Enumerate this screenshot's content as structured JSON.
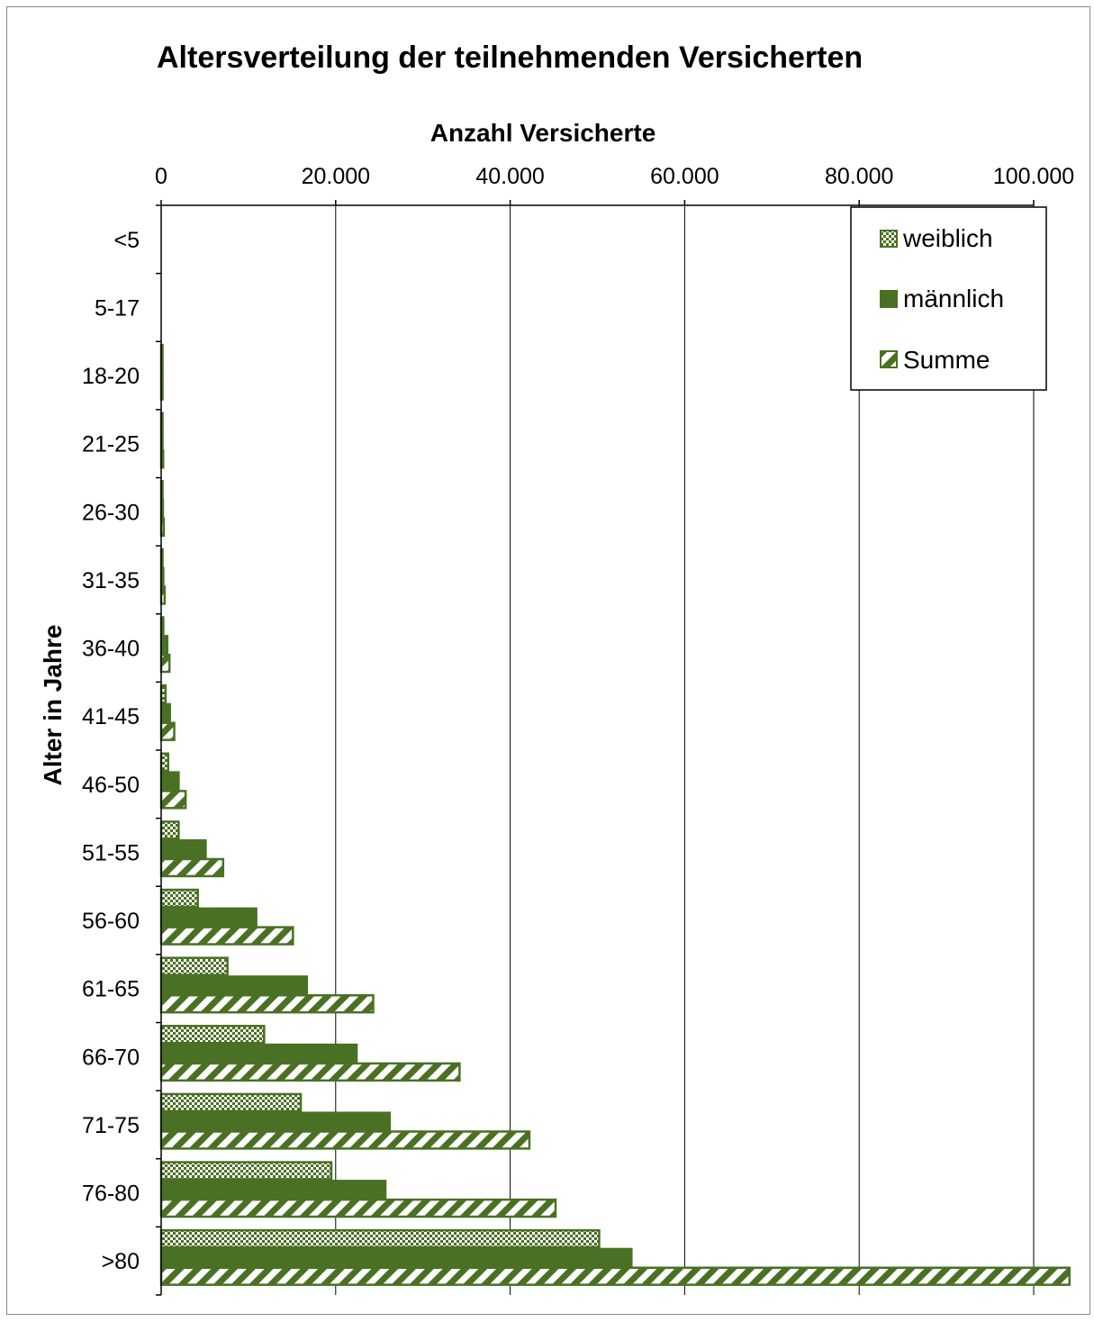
{
  "colors": {
    "series_green": "#4a7024",
    "background": "#ffffff",
    "text": "#000000"
  },
  "chart_data": {
    "type": "bar",
    "orientation": "horizontal",
    "title": "Altersverteilung der teilnehmenden Versicherten",
    "xlabel": "Anzahl Versicherte",
    "ylabel": "Alter in Jahre",
    "xlim": [
      0,
      100000
    ],
    "x_ticks": [
      0,
      20000,
      40000,
      60000,
      80000,
      100000
    ],
    "x_tick_labels": [
      "0",
      "20.000",
      "40.000",
      "60.000",
      "80.000",
      "100.000"
    ],
    "x_axis_position": "top",
    "grid": "vertical",
    "legend_position": "top-right",
    "categories": [
      "<5",
      "5-17",
      "18-20",
      "21-25",
      "26-30",
      "31-35",
      "36-40",
      "41-45",
      "46-50",
      "51-55",
      "56-60",
      "61-65",
      "66-70",
      "71-75",
      "76-80",
      ">80"
    ],
    "series": [
      {
        "name": "weiblich",
        "pattern": "checker",
        "values": [
          0,
          0,
          50,
          80,
          100,
          150,
          250,
          500,
          800,
          2000,
          4200,
          7600,
          11800,
          16000,
          19500,
          50200
        ]
      },
      {
        "name": "männlich",
        "pattern": "solid",
        "values": [
          0,
          0,
          100,
          150,
          200,
          250,
          700,
          1000,
          2000,
          5100,
          10900,
          16700,
          22400,
          26200,
          25700,
          53900
        ]
      },
      {
        "name": "Summe",
        "pattern": "diagonal",
        "values": [
          0,
          0,
          150,
          230,
          300,
          400,
          950,
          1500,
          2800,
          7100,
          15100,
          24300,
          34200,
          42200,
          45200,
          104100
        ]
      }
    ]
  }
}
